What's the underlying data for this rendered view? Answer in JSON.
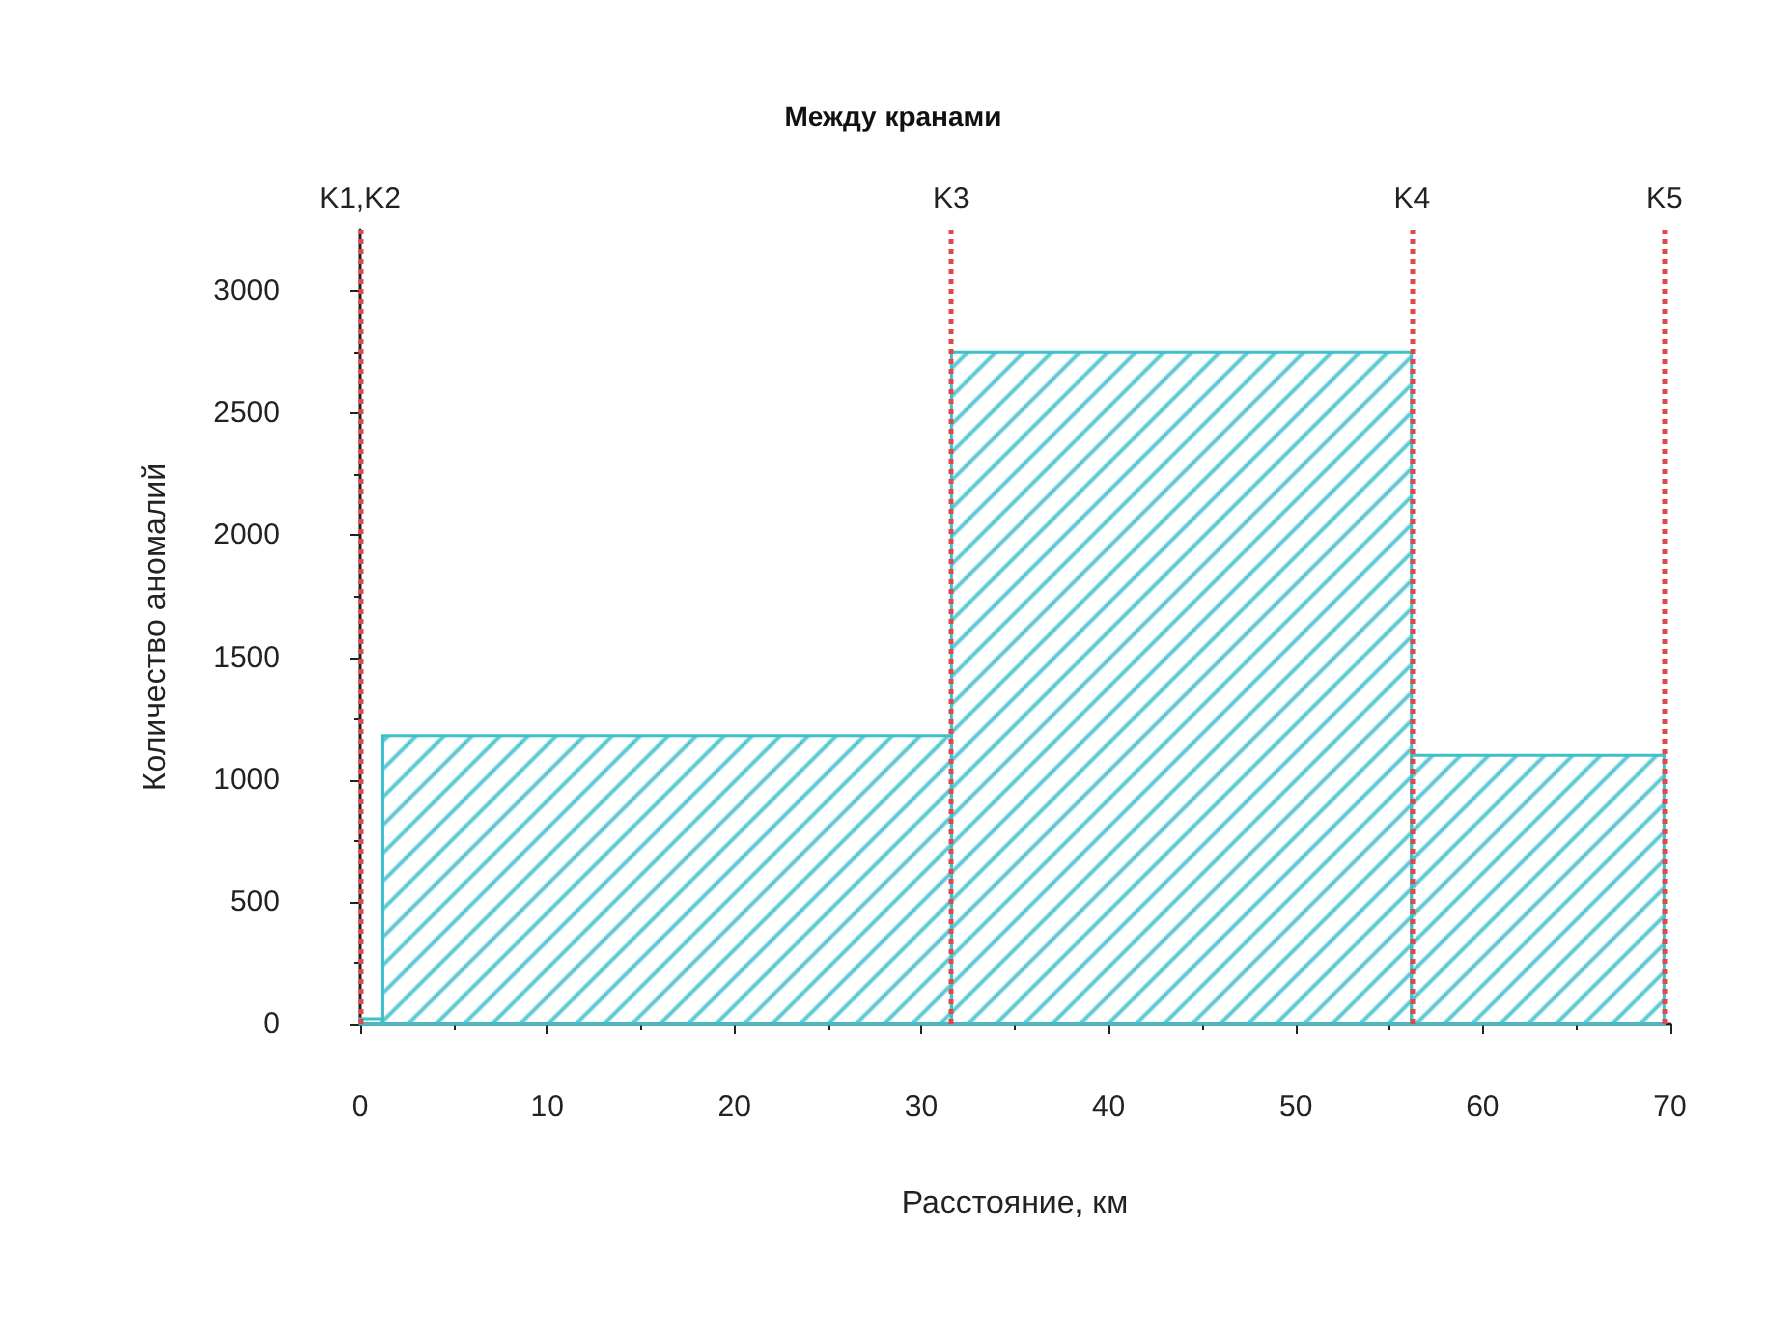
{
  "chart_data": {
    "type": "histogram",
    "title": "Между кранами",
    "xlabel": "Расстояние, км",
    "ylabel": "Количество аномалий",
    "bins": [
      0,
      1.2,
      31.6,
      56.2,
      69.7
    ],
    "values": [
      20,
      1180,
      2750,
      1100
    ],
    "color": "#3fbfc9",
    "xlim": [
      0,
      70
    ],
    "xticks": [
      0,
      10,
      20,
      30,
      40,
      50,
      60,
      70
    ],
    "ylim": [
      0,
      3250
    ],
    "yticks": [
      0,
      500,
      1000,
      1500,
      2000,
      2500,
      3000
    ],
    "grid": false,
    "ref_lines": [
      {
        "axis": "x",
        "value": 0,
        "label": "K1,K2",
        "color": "#e0484b",
        "line_style": "dotted"
      },
      {
        "axis": "x",
        "value": 31.6,
        "label": "K3",
        "color": "#e0484b",
        "line_style": "dotted"
      },
      {
        "axis": "x",
        "value": 56.2,
        "label": "K4",
        "color": "#e0484b",
        "line_style": "dotted"
      },
      {
        "axis": "x",
        "value": 69.7,
        "label": "K5",
        "color": "#e0484b",
        "line_style": "dotted"
      }
    ]
  }
}
